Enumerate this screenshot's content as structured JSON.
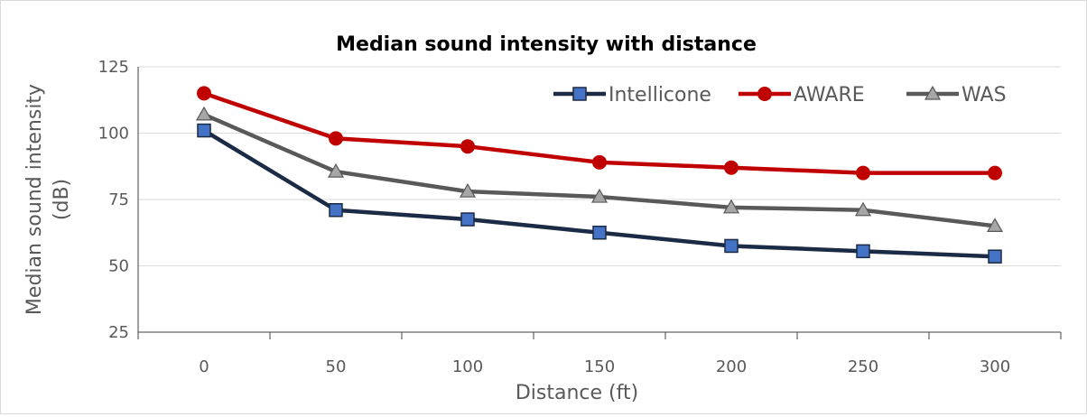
{
  "chart_data": {
    "type": "line",
    "title": "Median sound intensity with distance",
    "xlabel": "Distance (ft)",
    "ylabel_line1": "Median sound intensity",
    "ylabel_line2": "(dB)",
    "x": [
      0,
      50,
      100,
      150,
      200,
      250,
      300
    ],
    "x_tick_labels": [
      "0",
      "50",
      "100",
      "150",
      "200",
      "250",
      "300"
    ],
    "ylim": [
      25,
      125
    ],
    "y_ticks": [
      25,
      50,
      75,
      100,
      125
    ],
    "y_tick_labels": [
      "25",
      "50",
      "75",
      "100",
      "125"
    ],
    "grid": true,
    "legend_position": "top-right",
    "series": [
      {
        "name": "Intellicone",
        "color": "#1b2a45",
        "marker_fill": "#4472c4",
        "marker": "square",
        "values": [
          101,
          71,
          67.5,
          62.5,
          57.5,
          55.5,
          53.5
        ]
      },
      {
        "name": "AWARE",
        "color": "#c00000",
        "marker_fill": "#c00000",
        "marker": "circle",
        "values": [
          115,
          98,
          95,
          89,
          87,
          85,
          85
        ]
      },
      {
        "name": "WAS",
        "color": "#595959",
        "marker_fill": "#a6a6a6",
        "marker": "triangle",
        "values": [
          107,
          85.5,
          78,
          76,
          72,
          71,
          65
        ]
      }
    ]
  }
}
